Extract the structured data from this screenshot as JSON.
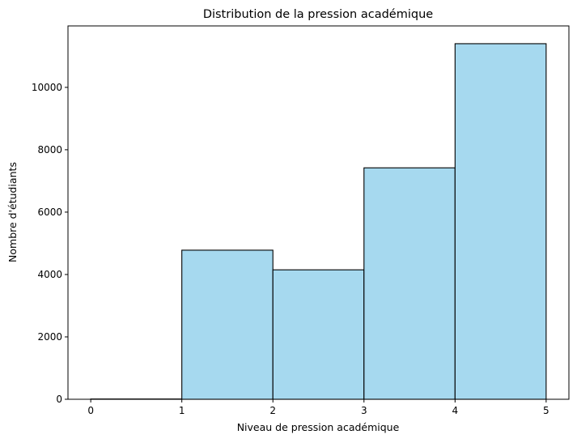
{
  "chart_data": {
    "type": "bar",
    "title": "Distribution de la pression académique",
    "xlabel": "Niveau de pression académique",
    "ylabel": "Nombre d'étudiants",
    "xlim": [
      -0.25,
      5.25
    ],
    "ylim": [
      0,
      11970
    ],
    "xticks": [
      0,
      1,
      2,
      3,
      4,
      5
    ],
    "yticks": [
      0,
      2000,
      4000,
      6000,
      8000,
      10000
    ],
    "bins": [
      {
        "x0": 0,
        "x1": 1,
        "value": 9
      },
      {
        "x0": 1,
        "x1": 2,
        "value": 4780
      },
      {
        "x0": 2,
        "x1": 3,
        "value": 4150
      },
      {
        "x0": 3,
        "x1": 4,
        "value": 7420
      },
      {
        "x0": 4,
        "x1": 5,
        "value": 11400
      }
    ],
    "colors": {
      "bar_fill": "#a6d9ef",
      "bar_edge": "#000000"
    },
    "grid": false,
    "legend": "none"
  }
}
